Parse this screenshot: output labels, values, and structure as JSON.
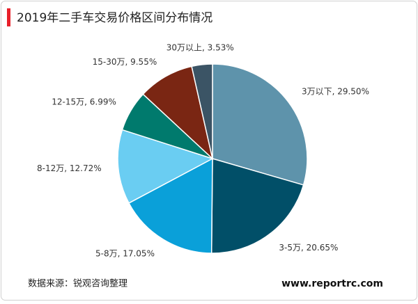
{
  "chart_data": {
    "type": "pie",
    "title": "2019年二手车交易价格区间分布情况",
    "values": [
      29.5,
      20.65,
      17.05,
      12.72,
      6.99,
      9.55,
      3.53
    ],
    "value_labels": [
      "3万以下, 29.50%",
      "3-5万, 20.65%",
      "5-8万, 17.05%",
      "8-12万, 12.72%",
      "12-15万, 6.99%",
      "15-30万, 9.55%",
      "30万以上, 3.53%"
    ],
    "colors": [
      "#5e93ab",
      "#014f68",
      "#0aa0d9",
      "#6acdf2",
      "#007a6d",
      "#7a2613",
      "#3b5465"
    ],
    "source": "数据来源：锐观咨询整理",
    "website": "www.reportrc.com"
  }
}
